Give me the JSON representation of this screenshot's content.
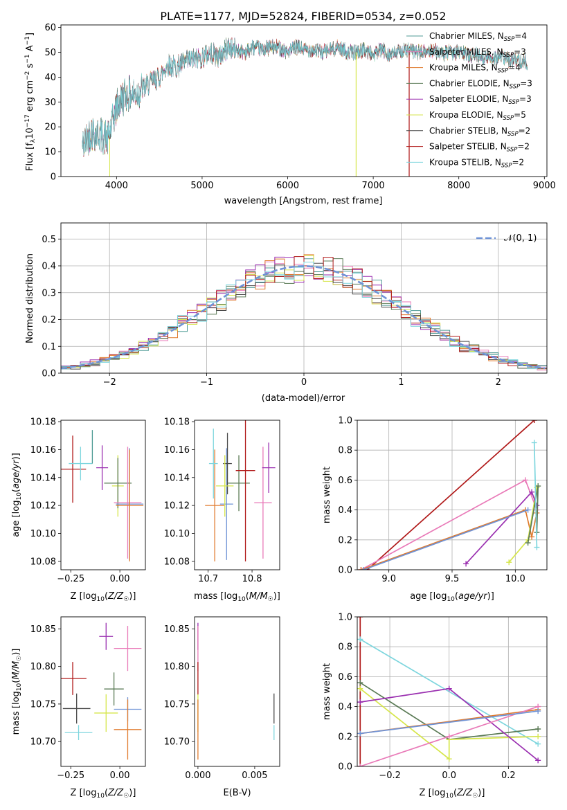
{
  "figure_title": "PLATE=1177, MJD=52824, FIBERID=0534, z=0.052",
  "colors": {
    "Chabrier MILES": "#4f9b95",
    "Salpeter MILES": "#e97ab8",
    "Kroupa MILES": "#e07b2f",
    "Chabrier ELODIE": "#5a7a55",
    "Salpeter ELODIE": "#9a2fb0",
    "Kroupa ELODIE": "#d6e64b",
    "Chabrier STELIB": "#4a4a4a",
    "Salpeter STELIB": "#b01818",
    "Kroupa STELIB": "#7ed6de",
    "normal": "#6f93d6"
  },
  "chart_data": [
    {
      "id": "spectrum",
      "type": "line",
      "xlabel": "wavelength [Angstrom, rest frame]",
      "ylabel": "Flux [f_λ 10^-17 erg cm^-2 s^-1 A^-1]",
      "xlim": [
        3350,
        9030
      ],
      "ylim": [
        0,
        61
      ],
      "xticks": [
        "4000",
        "5000",
        "6000",
        "7000",
        "8000",
        "9000"
      ],
      "yticks": [
        "0",
        "10",
        "20",
        "30",
        "40",
        "50",
        "60"
      ],
      "legend_position": "upper right",
      "legend": [
        {
          "label": "Chabrier MILES, N_SSP=4"
        },
        {
          "label": "Salpeter MILES, N_SSP=3"
        },
        {
          "label": "Kroupa MILES, N_SSP=4"
        },
        {
          "label": "Chabrier ELODIE, N_SSP=3"
        },
        {
          "label": "Salpeter ELODIE, N_SSP=3"
        },
        {
          "label": "Kroupa ELODIE, N_SSP=5"
        },
        {
          "label": "Chabrier STELIB, N_SSP=2"
        },
        {
          "label": "Salpeter STELIB, N_SSP=2"
        },
        {
          "label": "Kroupa STELIB, N_SSP=2"
        }
      ],
      "continuum": [
        [
          3600,
          12
        ],
        [
          3700,
          18
        ],
        [
          3800,
          17
        ],
        [
          3900,
          15
        ],
        [
          4000,
          28
        ],
        [
          4100,
          33
        ],
        [
          4200,
          33
        ],
        [
          4300,
          35
        ],
        [
          4400,
          38
        ],
        [
          4500,
          40
        ],
        [
          4600,
          45
        ],
        [
          4700,
          44
        ],
        [
          4800,
          46
        ],
        [
          4900,
          47
        ],
        [
          5000,
          48
        ],
        [
          5100,
          50
        ],
        [
          5200,
          48
        ],
        [
          5300,
          52
        ],
        [
          5400,
          51
        ],
        [
          5500,
          50
        ],
        [
          5600,
          52
        ],
        [
          5700,
          51
        ],
        [
          5800,
          52
        ],
        [
          5900,
          52
        ],
        [
          6000,
          50
        ],
        [
          6100,
          52
        ],
        [
          6200,
          51
        ],
        [
          6300,
          51
        ],
        [
          6400,
          50
        ],
        [
          6500,
          51
        ],
        [
          6600,
          52
        ],
        [
          6700,
          50
        ],
        [
          6800,
          50
        ],
        [
          6900,
          51
        ],
        [
          7000,
          49
        ],
        [
          7100,
          51
        ],
        [
          7200,
          49
        ],
        [
          7300,
          50
        ],
        [
          7400,
          51
        ],
        [
          7500,
          50
        ],
        [
          7600,
          50
        ],
        [
          7700,
          51
        ],
        [
          7800,
          49
        ],
        [
          7900,
          50
        ],
        [
          8000,
          50
        ],
        [
          8100,
          49
        ],
        [
          8200,
          49
        ],
        [
          8300,
          48
        ],
        [
          8400,
          48
        ],
        [
          8500,
          48
        ],
        [
          8600,
          47
        ],
        [
          8700,
          47
        ],
        [
          8800,
          46
        ]
      ],
      "spikes": [
        {
          "x": 6800,
          "series": "Kroupa ELODIE"
        },
        {
          "x": 7420,
          "series": "Salpeter STELIB"
        }
      ]
    },
    {
      "id": "residuals",
      "type": "histogram",
      "xlabel": "(data-model)/error",
      "ylabel": "Normed distribution",
      "xlim": [
        -2.5,
        2.5
      ],
      "ylim": [
        0,
        0.56
      ],
      "xticks": [
        "−2",
        "−1",
        "0",
        "1",
        "2"
      ],
      "yticks": [
        "0.0",
        "0.1",
        "0.2",
        "0.3",
        "0.4",
        "0.5"
      ],
      "grid": true,
      "legend": [
        {
          "label": "𝒩(0, 1)"
        }
      ],
      "bin_width": 0.1
    },
    {
      "id": "age_vs_Z",
      "type": "scatter",
      "xlabel": "Z [log10(Z/Z☉)]",
      "ylabel": "age  [log10(age/yr)]",
      "xlim": [
        -0.3,
        0.13
      ],
      "ylim": [
        10.074,
        10.181
      ],
      "xticks": [
        "−0.25",
        "0.00"
      ],
      "yticks": [
        "10.08",
        "10.10",
        "10.12",
        "10.14",
        "10.16",
        "10.18"
      ],
      "points": [
        {
          "series": "Salpeter STELIB",
          "x": -0.24,
          "y": 10.146,
          "xerr": 0.068,
          "yerr": 0.024
        },
        {
          "series": "Kroupa STELIB",
          "x": -0.2,
          "y": 10.15,
          "xerr": 0.06,
          "yerr": 0.012
        },
        {
          "series": "Chabrier MILES",
          "x": -0.14,
          "y": 10.162,
          "xerr": 0.0,
          "yerr": 0.012
        },
        {
          "series": "Salpeter ELODIE",
          "x": -0.09,
          "y": 10.147,
          "xerr": 0.03,
          "yerr": 0.016
        },
        {
          "series": "Kroupa ELODIE",
          "x": -0.01,
          "y": 10.134,
          "xerr": 0.03,
          "yerr": 0.022
        },
        {
          "series": "Chabrier ELODIE",
          "x": -0.01,
          "y": 10.136,
          "xerr": 0.07,
          "yerr": 0.018
        },
        {
          "series": "normal",
          "x": 0.05,
          "y": 10.121,
          "xerr": 0.07,
          "yerr": 0.04
        },
        {
          "series": "Salpeter MILES",
          "x": 0.04,
          "y": 10.122,
          "xerr": 0.07,
          "yerr": 0.04
        },
        {
          "series": "Kroupa MILES",
          "x": 0.05,
          "y": 10.12,
          "xerr": 0.07,
          "yerr": 0.04
        }
      ]
    },
    {
      "id": "age_vs_mass",
      "type": "scatter",
      "xlabel": "mass [log10(M/M☉)]",
      "ylabel": "",
      "xlim": [
        10.669,
        10.863
      ],
      "ylim": [
        10.074,
        10.181
      ],
      "xticks": [
        "10.7",
        "10.8"
      ],
      "yticks": [
        "10.08",
        "10.10",
        "10.12",
        "10.14",
        "10.16",
        "10.18"
      ],
      "points": [
        {
          "series": "Kroupa MILES",
          "x": 10.715,
          "y": 10.12,
          "xerr": 0.022,
          "yerr": 0.04
        },
        {
          "series": "Kroupa STELIB",
          "x": 10.712,
          "y": 10.15,
          "xerr": 0.01,
          "yerr": 0.025
        },
        {
          "series": "normal",
          "x": 10.742,
          "y": 10.121,
          "xerr": 0.015,
          "yerr": 0.04
        },
        {
          "series": "Chabrier STELIB",
          "x": 10.744,
          "y": 10.15,
          "xerr": 0.01,
          "yerr": 0.022
        },
        {
          "series": "Kroupa ELODIE",
          "x": 10.738,
          "y": 10.134,
          "xerr": 0.02,
          "yerr": 0.022
        },
        {
          "series": "Chabrier ELODIE",
          "x": 10.77,
          "y": 10.136,
          "xerr": 0.025,
          "yerr": 0.02
        },
        {
          "series": "Salpeter STELIB",
          "x": 10.785,
          "y": 10.145,
          "xerr": 0.022,
          "yerr": 0.065
        },
        {
          "series": "Salpeter MILES",
          "x": 10.825,
          "y": 10.122,
          "xerr": 0.02,
          "yerr": 0.04
        },
        {
          "series": "Salpeter ELODIE",
          "x": 10.838,
          "y": 10.147,
          "xerr": 0.015,
          "yerr": 0.018
        }
      ]
    },
    {
      "id": "weight_vs_age",
      "type": "line",
      "xlabel": "age  [log10(age/yr)]",
      "ylabel": "mass weight",
      "xlim": [
        8.75,
        10.25
      ],
      "ylim": [
        0,
        1
      ],
      "xticks": [
        "9.0",
        "9.5",
        "10.0"
      ],
      "yticks": [
        "0.0",
        "0.2",
        "0.4",
        "0.6",
        "0.8",
        "1.0"
      ],
      "grid": true,
      "series": [
        {
          "name": "Salpeter STELIB",
          "points": [
            [
              8.83,
              0
            ],
            [
              10.15,
              1.0
            ]
          ]
        },
        {
          "name": "Salpeter MILES",
          "points": [
            [
              8.78,
              0
            ],
            [
              10.08,
              0.6
            ],
            [
              10.17,
              0.4
            ]
          ]
        },
        {
          "name": "Kroupa MILES",
          "points": [
            [
              8.78,
              0
            ],
            [
              10.08,
              0.4
            ],
            [
              10.13,
              0.22
            ],
            [
              10.17,
              0.38
            ]
          ]
        },
        {
          "name": "Kroupa ELODIE",
          "points": [
            [
              9.95,
              0.05
            ],
            [
              10.1,
              0.2
            ],
            [
              10.17,
              0.55
            ]
          ]
        },
        {
          "name": "Salpeter ELODIE",
          "points": [
            [
              9.61,
              0.04
            ],
            [
              10.13,
              0.52
            ],
            [
              10.17,
              0.43
            ]
          ]
        },
        {
          "name": "Chabrier ELODIE",
          "points": [
            [
              10.1,
              0.18
            ],
            [
              10.18,
              0.56
            ],
            [
              10.17,
              0.25
            ]
          ]
        },
        {
          "name": "Kroupa STELIB",
          "points": [
            [
              10.15,
              0.85
            ],
            [
              10.17,
              0.15
            ]
          ]
        },
        {
          "name": "normal",
          "points": [
            [
              8.8,
              0
            ],
            [
              10.1,
              0.4
            ]
          ]
        }
      ]
    },
    {
      "id": "mass_vs_Z",
      "type": "scatter",
      "xlabel": "Z [log10(Z/Z☉)]",
      "ylabel": "mass [log10(M/M☉)]",
      "xlim": [
        -0.3,
        0.13
      ],
      "ylim": [
        10.667,
        10.866
      ],
      "xticks": [
        "−0.25",
        "0.00"
      ],
      "yticks": [
        "10.70",
        "10.75",
        "10.80",
        "10.85"
      ],
      "points": [
        {
          "series": "Salpeter STELIB",
          "x": -0.24,
          "y": 10.784,
          "xerr": 0.07,
          "yerr": 0.022
        },
        {
          "series": "Chabrier STELIB",
          "x": -0.22,
          "y": 10.744,
          "xerr": 0.07,
          "yerr": 0.02
        },
        {
          "series": "Kroupa STELIB",
          "x": -0.21,
          "y": 10.712,
          "xerr": 0.07,
          "yerr": 0.01
        },
        {
          "series": "Salpeter ELODIE",
          "x": -0.07,
          "y": 10.84,
          "xerr": 0.035,
          "yerr": 0.018
        },
        {
          "series": "Chabrier ELODIE",
          "x": -0.03,
          "y": 10.77,
          "xerr": 0.05,
          "yerr": 0.022
        },
        {
          "series": "Kroupa ELODIE",
          "x": -0.07,
          "y": 10.738,
          "xerr": 0.06,
          "yerr": 0.025
        },
        {
          "series": "Salpeter MILES",
          "x": 0.04,
          "y": 10.824,
          "xerr": 0.07,
          "yerr": 0.03
        },
        {
          "series": "normal",
          "x": 0.04,
          "y": 10.743,
          "xerr": 0.07,
          "yerr": 0.016
        },
        {
          "series": "Kroupa MILES",
          "x": 0.04,
          "y": 10.716,
          "xerr": 0.07,
          "yerr": 0.04
        }
      ]
    },
    {
      "id": "mass_vs_ebv",
      "type": "scatter",
      "xlabel": "E(B-V)",
      "ylabel": "",
      "xlim": [
        -0.0003,
        0.0072
      ],
      "ylim": [
        10.667,
        10.866
      ],
      "xticks": [
        "0.000",
        "0.005"
      ],
      "yticks": [
        "10.70",
        "10.75",
        "10.80",
        "10.85"
      ],
      "points": [
        {
          "series": "Salpeter ELODIE",
          "x": 0.0,
          "y": 10.84,
          "xerr": 0,
          "yerr": 0.018
        },
        {
          "series": "Salpeter MILES",
          "x": 0.0,
          "y": 10.824,
          "xerr": 0,
          "yerr": 0.03
        },
        {
          "series": "Salpeter STELIB",
          "x": 0.0,
          "y": 10.784,
          "xerr": 0,
          "yerr": 0.022
        },
        {
          "series": "Kroupa ELODIE",
          "x": 0.0,
          "y": 10.738,
          "xerr": 0,
          "yerr": 0.025
        },
        {
          "series": "Kroupa MILES",
          "x": 0.0,
          "y": 10.716,
          "xerr": 0,
          "yerr": 0.04
        },
        {
          "series": "Chabrier STELIB",
          "x": 0.0067,
          "y": 10.744,
          "xerr": 0,
          "yerr": 0.02
        },
        {
          "series": "Kroupa STELIB",
          "x": 0.0067,
          "y": 10.712,
          "xerr": 0,
          "yerr": 0.01
        }
      ]
    },
    {
      "id": "weight_vs_Z",
      "type": "line",
      "xlabel": "Z [log10(Z/Z☉)]",
      "ylabel": "mass weight",
      "xlim": [
        -0.31,
        0.33
      ],
      "ylim": [
        0,
        1
      ],
      "xticks": [
        "−0.2",
        "0.0",
        "0.2"
      ],
      "yticks": [
        "0.0",
        "0.2",
        "0.4",
        "0.6",
        "0.8",
        "1.0"
      ],
      "grid": true,
      "series": [
        {
          "name": "Salpeter STELIB",
          "points": [
            [
              -0.3,
              0
            ],
            [
              -0.3,
              1.0
            ]
          ]
        },
        {
          "name": "Kroupa STELIB",
          "points": [
            [
              -0.3,
              0.85
            ],
            [
              0.3,
              0.15
            ]
          ]
        },
        {
          "name": "Chabrier ELODIE",
          "points": [
            [
              -0.3,
              0.56
            ],
            [
              0.0,
              0.18
            ],
            [
              0.3,
              0.25
            ]
          ]
        },
        {
          "name": "Kroupa ELODIE",
          "points": [
            [
              -0.3,
              0.52
            ],
            [
              0.0,
              0.05
            ],
            [
              0.0,
              0.18
            ],
            [
              0.3,
              0.2
            ]
          ]
        },
        {
          "name": "Salpeter ELODIE",
          "points": [
            [
              -0.3,
              0.43
            ],
            [
              0.0,
              0.52
            ],
            [
              0.3,
              0.04
            ]
          ]
        },
        {
          "name": "Kroupa MILES",
          "points": [
            [
              -0.3,
              0.22
            ],
            [
              0.3,
              0.38
            ]
          ]
        },
        {
          "name": "Salpeter MILES",
          "points": [
            [
              -0.3,
              0
            ],
            [
              0.0,
              0.2
            ],
            [
              0.3,
              0.4
            ]
          ]
        },
        {
          "name": "normal",
          "points": [
            [
              -0.3,
              0.22
            ],
            [
              0.3,
              0.37
            ]
          ]
        }
      ]
    }
  ]
}
